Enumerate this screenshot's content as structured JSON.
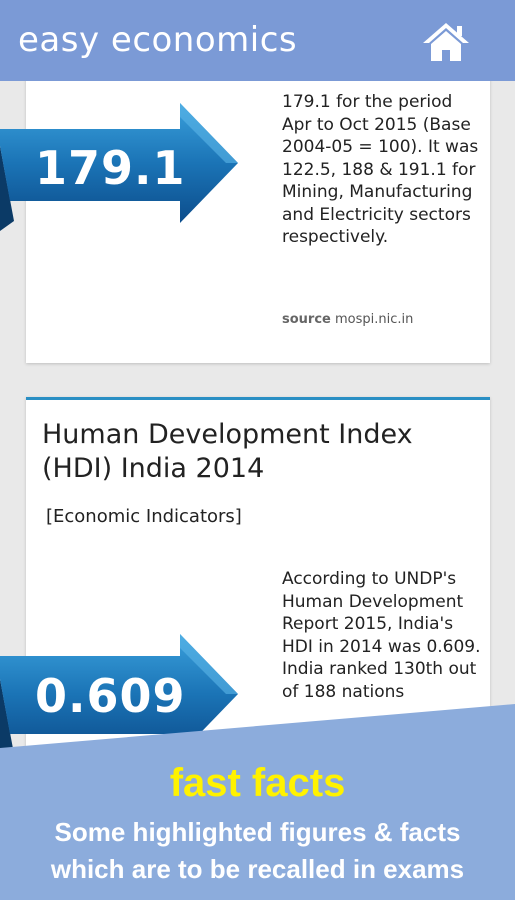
{
  "appbar": {
    "title": "easy economics"
  },
  "cards": [
    {
      "value": "179.1",
      "text": "179.1 for the period Apr to Oct 2015 (Base 2004-05 = 100). It was 122.5, 188 & 191.1 for Mining, Manufacturing and Electricity sectors respectively.",
      "source_label": "source",
      "source_value": "mospi.nic.in"
    },
    {
      "title": "Human Development Index (HDI) India 2014",
      "category": "[Economic Indicators]",
      "value": "0.609",
      "text": "According to UNDP's Human Development Report 2015, India's HDI in 2014 was 0.609. India ranked 130th out of 188 nations"
    }
  ],
  "promo": {
    "title": "fast facts",
    "subtitle_line1": "Some highlighted figures & facts",
    "subtitle_line2": "which are to be recalled in exams"
  }
}
